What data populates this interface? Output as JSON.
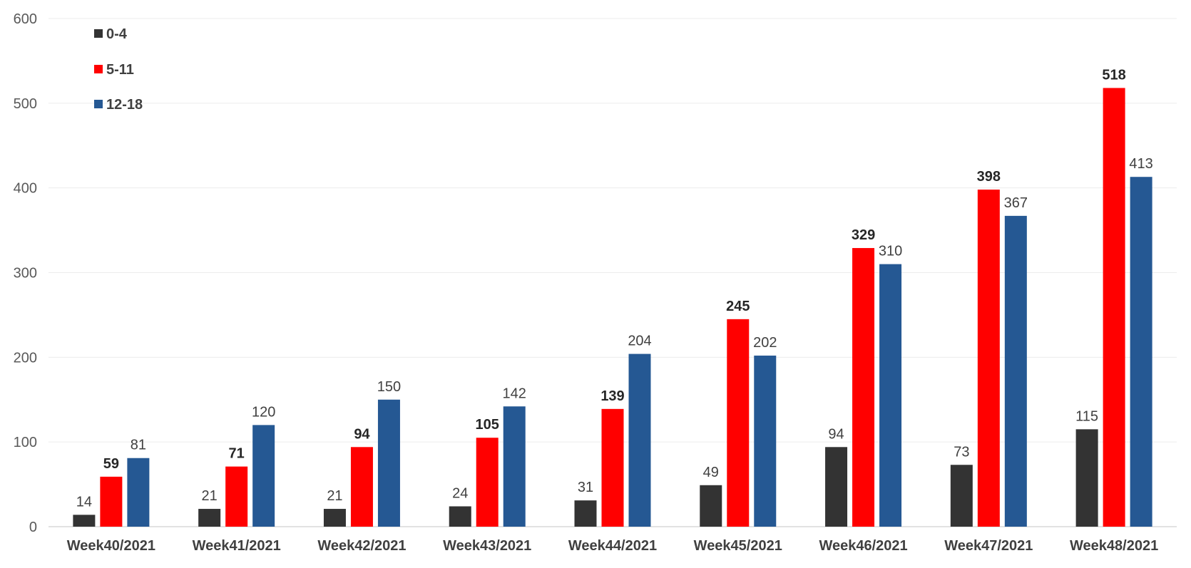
{
  "chart_data": {
    "type": "bar",
    "categories": [
      "Week40/2021",
      "Week41/2021",
      "Week42/2021",
      "Week43/2021",
      "Week44/2021",
      "Week45/2021",
      "Week46/2021",
      "Week47/2021",
      "Week48/2021"
    ],
    "series": [
      {
        "name": "0-4",
        "color": "#333333",
        "label_bold": false,
        "values": [
          14,
          21,
          21,
          24,
          31,
          49,
          94,
          73,
          115
        ]
      },
      {
        "name": "5-11",
        "color": "#ff0000",
        "label_bold": true,
        "values": [
          59,
          71,
          94,
          105,
          139,
          245,
          329,
          398,
          518
        ]
      },
      {
        "name": "12-18",
        "color": "#255893",
        "label_bold": false,
        "values": [
          81,
          120,
          150,
          142,
          204,
          202,
          310,
          367,
          413
        ]
      }
    ],
    "ylim": [
      0,
      600
    ],
    "yticks": [
      0,
      100,
      200,
      300,
      400,
      500,
      600
    ],
    "grid": true,
    "legend_position": "top-left",
    "data_labels": true
  }
}
